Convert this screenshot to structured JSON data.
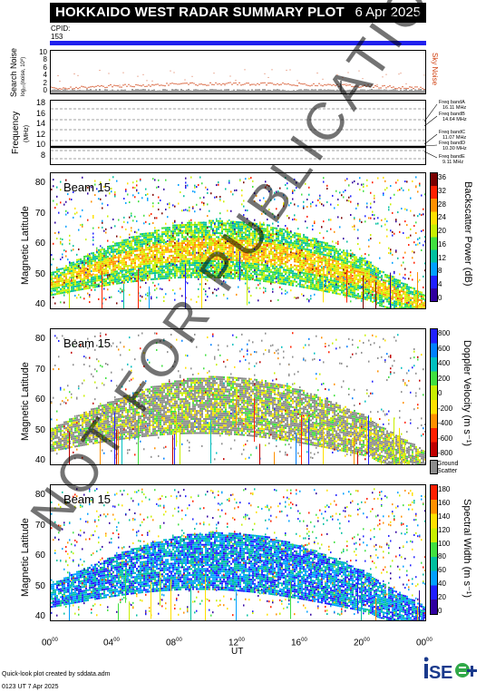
{
  "header": {
    "title": "HOKKAIDO WEST RADAR SUMMARY PLOT",
    "date": "6 Apr 2025",
    "cpid_label": "CPID:",
    "cpid_value": "153"
  },
  "noise_panel": {
    "ylabel": "Search Noise",
    "yunit": "log₁₀(noise, 10⁰)",
    "yticks": [
      "10",
      "8",
      "6",
      "4",
      "2",
      "0"
    ],
    "side_label": "Sky Noise",
    "side_color": "#d04010"
  },
  "freq_panel": {
    "ylabel": "Frequency",
    "yunit": "(MHz)",
    "yticks": [
      "18",
      "16",
      "14",
      "12",
      "10",
      "8"
    ],
    "bands": [
      {
        "name": "Freq bandA",
        "freq": "16.11 MHz"
      },
      {
        "name": "Freq bandB",
        "freq": "14.64 MHz"
      },
      {
        "name": "Freq bandC",
        "freq": "11.07 MHz"
      },
      {
        "name": "Freq bandD",
        "freq": "10.30 MHz"
      },
      {
        "name": "Freq bandE",
        "freq": "9.11 MHz"
      }
    ]
  },
  "panels": [
    {
      "beam": "Beam 15",
      "ylabel": "Magnetic Latitude",
      "yticks": [
        "80",
        "70",
        "60",
        "50",
        "40"
      ],
      "cb_label": "Backscatter Power (dB)",
      "cb_ticks": [
        "36",
        "32",
        "28",
        "24",
        "20",
        "16",
        "12",
        "8",
        "4",
        "0"
      ],
      "palette": [
        "#7a0000",
        "#ff2000",
        "#ff9000",
        "#ffe000",
        "#c8f000",
        "#40e040",
        "#00c0a0",
        "#00a0ff",
        "#2020ff",
        "#3000a0"
      ]
    },
    {
      "beam": "Beam 15",
      "ylabel": "Magnetic Latitude",
      "yticks": [
        "80",
        "70",
        "60",
        "50",
        "40"
      ],
      "cb_label": "Doppler Velocity (m s⁻¹)",
      "cb_ticks": [
        "800",
        "600",
        "400",
        "200",
        "0",
        "-200",
        "-400",
        "-600",
        "-800"
      ],
      "ground_label": "Ground Scatter",
      "palette": [
        "#2020ff",
        "#0080ff",
        "#00c0c0",
        "#40e040",
        "#c8f000",
        "#ffe000",
        "#ff9000",
        "#ff2000",
        "#c00000"
      ]
    },
    {
      "beam": "Beam 15",
      "ylabel": "Magnetic Latitude",
      "yticks": [
        "80",
        "70",
        "60",
        "50",
        "40"
      ],
      "cb_label": "Spectral Width (m s⁻¹)",
      "cb_ticks": [
        "180",
        "160",
        "140",
        "120",
        "100",
        "80",
        "60",
        "40",
        "20",
        "0"
      ],
      "palette": [
        "#ff2000",
        "#ff9000",
        "#ffe000",
        "#c8f000",
        "#40e040",
        "#00c0a0",
        "#00a0ff",
        "#2020ff",
        "#3000a0"
      ]
    }
  ],
  "xaxis": {
    "label": "UT",
    "ticks": [
      "00",
      "04",
      "08",
      "12",
      "16",
      "20",
      "00"
    ]
  },
  "footer": {
    "line1": "Quick-look plot created by sddata.adm",
    "line2": "0123 UT  7 Apr 2025"
  },
  "watermark": "NOT FOR PUBLICATION",
  "logo": "ISEE",
  "chart_data": {
    "type": "heatmap",
    "title": "HOKKAIDO WEST RADAR SUMMARY PLOT",
    "xlabel": "UT",
    "xlim": [
      0,
      24
    ],
    "ylabel": "Magnetic Latitude",
    "ylim": [
      38,
      85
    ],
    "series": [
      {
        "name": "Backscatter Power (dB)",
        "range": [
          0,
          36
        ]
      },
      {
        "name": "Doppler Velocity (m s⁻¹)",
        "range": [
          -800,
          800
        ]
      },
      {
        "name": "Spectral Width (m s⁻¹)",
        "range": [
          0,
          180
        ]
      }
    ]
  }
}
